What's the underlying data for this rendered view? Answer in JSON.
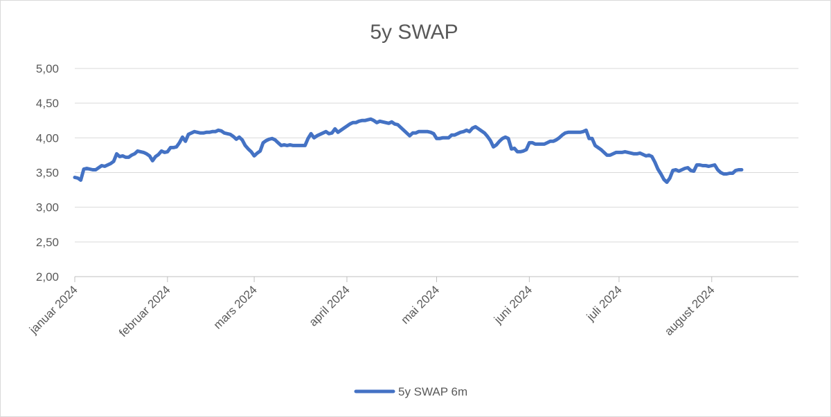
{
  "chart_data": {
    "type": "line",
    "title": "5y SWAP",
    "xlabel": "",
    "ylabel": "",
    "ylim": [
      2.0,
      5.0
    ],
    "xlim": [
      0,
      242
    ],
    "y_ticks": [
      "2,00",
      "2,50",
      "3,00",
      "3,50",
      "4,00",
      "4,50",
      "5,00"
    ],
    "y_tick_values": [
      2.0,
      2.5,
      3.0,
      3.5,
      4.0,
      4.5,
      5.0
    ],
    "x_ticks": [
      "januar 2024",
      "februar 2024",
      "mars 2024",
      "april 2024",
      "mai 2024",
      "juni 2024",
      "juli 2024",
      "august 2024"
    ],
    "x_tick_days": [
      0,
      31,
      60,
      91,
      121,
      152,
      182,
      213
    ],
    "grid": true,
    "legend_position": "bottom",
    "line_color": "#4472C4",
    "series": [
      {
        "name": "5y SWAP 6m",
        "points": [
          [
            0,
            3.43
          ],
          [
            1,
            3.42
          ],
          [
            2,
            3.39
          ],
          [
            3,
            3.55
          ],
          [
            4,
            3.56
          ],
          [
            5,
            3.55
          ],
          [
            6,
            3.54
          ],
          [
            7,
            3.54
          ],
          [
            8,
            3.57
          ],
          [
            9,
            3.6
          ],
          [
            10,
            3.59
          ],
          [
            11,
            3.61
          ],
          [
            12,
            3.63
          ],
          [
            13,
            3.66
          ],
          [
            14,
            3.77
          ],
          [
            15,
            3.73
          ],
          [
            16,
            3.74
          ],
          [
            17,
            3.72
          ],
          [
            18,
            3.72
          ],
          [
            19,
            3.75
          ],
          [
            20,
            3.77
          ],
          [
            21,
            3.81
          ],
          [
            22,
            3.8
          ],
          [
            23,
            3.79
          ],
          [
            24,
            3.77
          ],
          [
            25,
            3.74
          ],
          [
            26,
            3.67
          ],
          [
            27,
            3.73
          ],
          [
            28,
            3.76
          ],
          [
            29,
            3.81
          ],
          [
            30,
            3.79
          ],
          [
            31,
            3.8
          ],
          [
            32,
            3.86
          ],
          [
            33,
            3.86
          ],
          [
            34,
            3.87
          ],
          [
            35,
            3.93
          ],
          [
            36,
            4.01
          ],
          [
            37,
            3.95
          ],
          [
            38,
            4.05
          ],
          [
            39,
            4.07
          ],
          [
            40,
            4.09
          ],
          [
            41,
            4.08
          ],
          [
            42,
            4.07
          ],
          [
            43,
            4.07
          ],
          [
            44,
            4.08
          ],
          [
            45,
            4.08
          ],
          [
            46,
            4.09
          ],
          [
            47,
            4.09
          ],
          [
            48,
            4.11
          ],
          [
            49,
            4.1
          ],
          [
            50,
            4.07
          ],
          [
            51,
            4.06
          ],
          [
            52,
            4.05
          ],
          [
            53,
            4.02
          ],
          [
            54,
            3.98
          ],
          [
            55,
            4.01
          ],
          [
            56,
            3.97
          ],
          [
            57,
            3.89
          ],
          [
            58,
            3.84
          ],
          [
            59,
            3.8
          ],
          [
            60,
            3.74
          ],
          [
            61,
            3.78
          ],
          [
            62,
            3.81
          ],
          [
            63,
            3.93
          ],
          [
            64,
            3.96
          ],
          [
            65,
            3.98
          ],
          [
            66,
            3.99
          ],
          [
            67,
            3.97
          ],
          [
            68,
            3.93
          ],
          [
            69,
            3.89
          ],
          [
            70,
            3.9
          ],
          [
            71,
            3.89
          ],
          [
            72,
            3.9
          ],
          [
            73,
            3.89
          ],
          [
            74,
            3.89
          ],
          [
            75,
            3.89
          ],
          [
            76,
            3.89
          ],
          [
            77,
            3.89
          ],
          [
            78,
            3.99
          ],
          [
            79,
            4.06
          ],
          [
            80,
            4.0
          ],
          [
            81,
            4.03
          ],
          [
            82,
            4.05
          ],
          [
            83,
            4.07
          ],
          [
            84,
            4.09
          ],
          [
            85,
            4.06
          ],
          [
            86,
            4.07
          ],
          [
            87,
            4.13
          ],
          [
            88,
            4.08
          ],
          [
            89,
            4.11
          ],
          [
            90,
            4.14
          ],
          [
            91,
            4.17
          ],
          [
            92,
            4.2
          ],
          [
            93,
            4.22
          ],
          [
            94,
            4.22
          ],
          [
            95,
            4.24
          ],
          [
            96,
            4.25
          ],
          [
            97,
            4.25
          ],
          [
            98,
            4.26
          ],
          [
            99,
            4.27
          ],
          [
            100,
            4.25
          ],
          [
            101,
            4.22
          ],
          [
            102,
            4.24
          ],
          [
            103,
            4.23
          ],
          [
            104,
            4.22
          ],
          [
            105,
            4.21
          ],
          [
            106,
            4.23
          ],
          [
            107,
            4.2
          ],
          [
            108,
            4.19
          ],
          [
            109,
            4.15
          ],
          [
            110,
            4.11
          ],
          [
            111,
            4.07
          ],
          [
            112,
            4.03
          ],
          [
            113,
            4.07
          ],
          [
            114,
            4.07
          ],
          [
            115,
            4.09
          ],
          [
            116,
            4.09
          ],
          [
            117,
            4.09
          ],
          [
            118,
            4.09
          ],
          [
            119,
            4.08
          ],
          [
            120,
            4.06
          ],
          [
            121,
            3.99
          ],
          [
            122,
            3.99
          ],
          [
            123,
            4.0
          ],
          [
            124,
            4.0
          ],
          [
            125,
            4.0
          ],
          [
            126,
            4.04
          ],
          [
            127,
            4.04
          ],
          [
            128,
            4.06
          ],
          [
            129,
            4.08
          ],
          [
            130,
            4.09
          ],
          [
            131,
            4.11
          ],
          [
            132,
            4.09
          ],
          [
            133,
            4.14
          ],
          [
            134,
            4.16
          ],
          [
            135,
            4.13
          ],
          [
            136,
            4.1
          ],
          [
            137,
            4.07
          ],
          [
            138,
            4.02
          ],
          [
            139,
            3.96
          ],
          [
            140,
            3.87
          ],
          [
            141,
            3.9
          ],
          [
            142,
            3.95
          ],
          [
            143,
            3.99
          ],
          [
            144,
            4.01
          ],
          [
            145,
            3.99
          ],
          [
            146,
            3.84
          ],
          [
            147,
            3.85
          ],
          [
            148,
            3.8
          ],
          [
            149,
            3.8
          ],
          [
            150,
            3.81
          ],
          [
            151,
            3.83
          ],
          [
            152,
            3.93
          ],
          [
            153,
            3.93
          ],
          [
            154,
            3.91
          ],
          [
            155,
            3.91
          ],
          [
            156,
            3.91
          ],
          [
            157,
            3.91
          ],
          [
            158,
            3.93
          ],
          [
            159,
            3.95
          ],
          [
            160,
            3.95
          ],
          [
            161,
            3.97
          ],
          [
            162,
            4.0
          ],
          [
            163,
            4.04
          ],
          [
            164,
            4.07
          ],
          [
            165,
            4.08
          ],
          [
            166,
            4.08
          ],
          [
            167,
            4.08
          ],
          [
            168,
            4.08
          ],
          [
            169,
            4.08
          ],
          [
            170,
            4.09
          ],
          [
            171,
            4.11
          ],
          [
            172,
            3.99
          ],
          [
            173,
            3.99
          ],
          [
            174,
            3.89
          ],
          [
            175,
            3.86
          ],
          [
            176,
            3.83
          ],
          [
            177,
            3.79
          ],
          [
            178,
            3.75
          ],
          [
            179,
            3.75
          ],
          [
            180,
            3.77
          ],
          [
            181,
            3.79
          ],
          [
            182,
            3.79
          ],
          [
            183,
            3.79
          ],
          [
            184,
            3.8
          ],
          [
            185,
            3.79
          ],
          [
            186,
            3.78
          ],
          [
            187,
            3.77
          ],
          [
            188,
            3.77
          ],
          [
            189,
            3.78
          ],
          [
            190,
            3.76
          ],
          [
            191,
            3.74
          ],
          [
            192,
            3.75
          ],
          [
            193,
            3.73
          ],
          [
            194,
            3.65
          ],
          [
            195,
            3.55
          ],
          [
            196,
            3.48
          ],
          [
            197,
            3.4
          ],
          [
            198,
            3.36
          ],
          [
            199,
            3.42
          ],
          [
            200,
            3.53
          ],
          [
            201,
            3.54
          ],
          [
            202,
            3.52
          ],
          [
            203,
            3.54
          ],
          [
            204,
            3.56
          ],
          [
            205,
            3.57
          ],
          [
            206,
            3.53
          ],
          [
            207,
            3.52
          ],
          [
            208,
            3.61
          ],
          [
            209,
            3.61
          ],
          [
            210,
            3.6
          ],
          [
            211,
            3.6
          ],
          [
            212,
            3.59
          ],
          [
            213,
            3.6
          ],
          [
            214,
            3.61
          ],
          [
            215,
            3.54
          ],
          [
            216,
            3.5
          ],
          [
            217,
            3.48
          ],
          [
            218,
            3.48
          ],
          [
            219,
            3.49
          ],
          [
            220,
            3.49
          ],
          [
            221,
            3.53
          ],
          [
            222,
            3.54
          ],
          [
            223,
            3.54
          ]
        ]
      }
    ]
  }
}
